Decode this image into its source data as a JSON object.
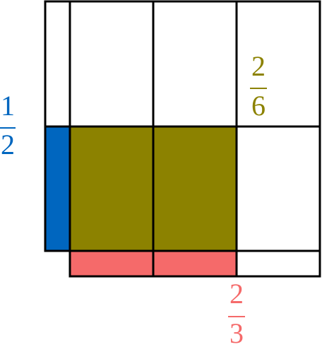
{
  "fractions": [
    {
      "numerator": "1",
      "denominator": "2"
    },
    {
      "numerator": "2",
      "denominator": "6"
    },
    {
      "numerator": "2",
      "denominator": "3"
    }
  ]
}
